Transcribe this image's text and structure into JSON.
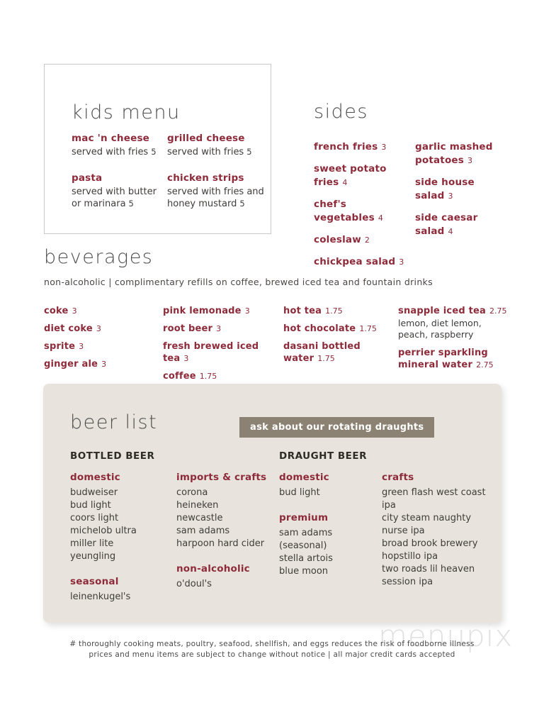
{
  "kids_menu": {
    "title": "kids menu",
    "items": [
      {
        "name": "mac 'n cheese",
        "desc": "served with fries",
        "price": "5"
      },
      {
        "name": "grilled cheese",
        "desc": "served with fries",
        "price": "5"
      },
      {
        "name": "pasta",
        "desc": "served with butter or marinara",
        "price": "5"
      },
      {
        "name": "chicken strips",
        "desc": "served with fries and honey mustard",
        "price": "5"
      }
    ]
  },
  "sides": {
    "title": "sides",
    "left_items": [
      {
        "name": "french fries",
        "price": "3"
      },
      {
        "name": "sweet potato fries",
        "price": "4"
      },
      {
        "name": "chef's vegetables",
        "price": "4"
      },
      {
        "name": "coleslaw",
        "price": "2"
      },
      {
        "name": "chickpea salad",
        "price": "3"
      }
    ],
    "right_items": [
      {
        "name": "garlic mashed potatoes",
        "price": "3"
      },
      {
        "name": "side house salad",
        "price": "3"
      },
      {
        "name": "side caesar salad",
        "price": "4"
      }
    ]
  },
  "beverages": {
    "title": "beverages",
    "subtitle": "non-alcoholic  |  complimentary refills on coffee, brewed iced tea and fountain drinks",
    "columns": [
      {
        "items": [
          {
            "name": "coke",
            "price": "3"
          },
          {
            "name": "diet coke",
            "price": "3"
          },
          {
            "name": "sprite",
            "price": "3"
          },
          {
            "name": "ginger ale",
            "price": "3"
          }
        ]
      },
      {
        "items": [
          {
            "name": "pink lemonade",
            "price": "3"
          },
          {
            "name": "root beer",
            "price": "3"
          },
          {
            "name": "fresh brewed iced tea",
            "price": "3"
          },
          {
            "name": "coffee",
            "price": "1.75"
          }
        ]
      },
      {
        "items": [
          {
            "name": "hot tea",
            "price": "1.75"
          },
          {
            "name": "hot chocolate",
            "price": "1.75"
          },
          {
            "name": "dasani bottled water",
            "price": "1.75"
          }
        ]
      },
      {
        "items": [
          {
            "name": "snapple iced tea",
            "price": "2.75",
            "desc": "lemon, diet lemon, peach, raspberry"
          },
          {
            "name": "perrier sparkling mineral water",
            "price": "2.75"
          }
        ]
      }
    ]
  },
  "beer_list": {
    "title": "beer list",
    "badge": "ask about our rotating draughts",
    "bottled": {
      "header": "BOTTLED BEER",
      "col1": [
        {
          "heading": "domestic",
          "items": [
            "budweiser",
            "bud light",
            "coors light",
            "michelob ultra",
            "miller lite",
            "yeungling"
          ]
        },
        {
          "heading": "seasonal",
          "items": [
            "leinenkugel's"
          ]
        }
      ],
      "col2": [
        {
          "heading": "imports & crafts",
          "items": [
            "corona",
            "heineken",
            "newcastle",
            "sam adams",
            "harpoon hard cider"
          ]
        },
        {
          "heading": "non-alcoholic",
          "items": [
            "o'doul's"
          ]
        }
      ]
    },
    "draught": {
      "header": "DRAUGHT BEER",
      "col1": [
        {
          "heading": "domestic",
          "items": [
            "bud light"
          ]
        },
        {
          "heading": "premium",
          "items": [
            "sam adams (seasonal)",
            "stella artois",
            "blue moon"
          ]
        }
      ],
      "col2": [
        {
          "heading": "crafts",
          "items": [
            "green flash west coast ipa",
            "city steam naughty nurse ipa",
            "broad brook brewery hopstillo ipa",
            "two roads lil heaven session ipa"
          ]
        }
      ]
    }
  },
  "footer": {
    "line1": "# thoroughly cooking meats, poultry, seafood, shellfish, and eggs reduces the risk of foodborne illness",
    "line2": "prices and menu items are subject to change without notice  |  all major credit cards accepted",
    "watermark": "menupix"
  },
  "colors": {
    "maroon": "#8e2b3a",
    "title_gray": "#4f4f4f",
    "beer_box_bg": "#e8e4dd",
    "badge_bg": "#8c8273"
  }
}
